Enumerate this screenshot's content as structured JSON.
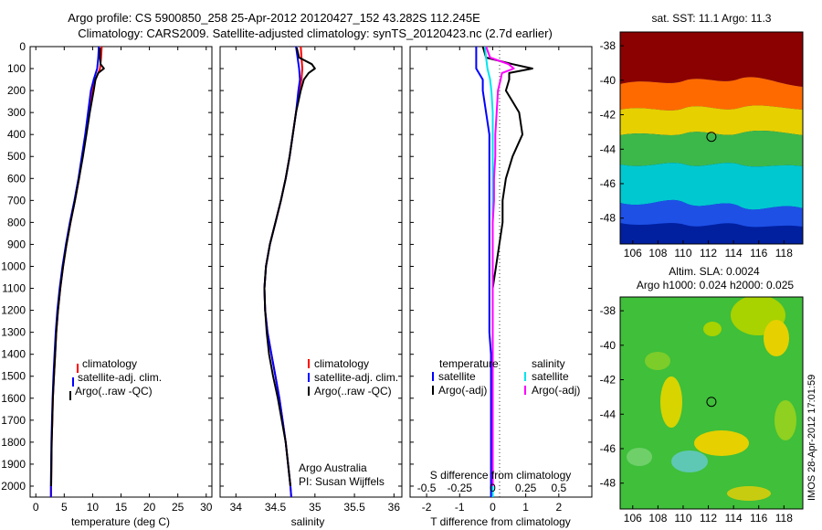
{
  "header": {
    "line1": "Argo profile: CS 5900850_258 25-Apr-2012 20120427_152 43.282S 112.245E",
    "line2": "Climatology: CARS2009. Satellite-adjusted climatology: synTS_20120423.nc (2.7d earlier)"
  },
  "colors": {
    "climatology": "#ff0000",
    "satellite": "#0000ff",
    "argo": "#000000",
    "salinity_satellite": "#00e5ee",
    "salinity_argo": "#ff00ff"
  },
  "chart_data": [
    {
      "type": "line",
      "id": "temperature",
      "xlabel": "temperature (deg C)",
      "xlim": [
        -1,
        31
      ],
      "xticks": [
        0,
        5,
        10,
        15,
        20,
        25,
        30
      ],
      "ylim": [
        2050,
        0
      ],
      "yticks": [
        0,
        100,
        200,
        300,
        400,
        500,
        600,
        700,
        800,
        900,
        1000,
        1100,
        1200,
        1300,
        1400,
        1500,
        1600,
        1700,
        1800,
        1900,
        2000
      ],
      "legend": [
        "climatology",
        "satellite-adj. clim.",
        "Argo(..raw -QC)"
      ],
      "series": [
        {
          "name": "climatology",
          "color": "red",
          "depth": [
            0,
            50,
            100,
            150,
            200,
            300,
            400,
            500,
            600,
            700,
            800,
            900,
            1000,
            1100,
            1200,
            1300,
            1400,
            1500,
            1600,
            1700,
            1800,
            1900,
            2000,
            2050
          ],
          "values": [
            11.6,
            11.5,
            11.3,
            10.5,
            10.0,
            9.4,
            8.8,
            8.2,
            7.6,
            6.9,
            6.1,
            5.4,
            4.8,
            4.3,
            3.9,
            3.6,
            3.4,
            3.2,
            3.0,
            2.9,
            2.8,
            2.75,
            2.7,
            2.7
          ]
        },
        {
          "name": "satellite-adj. clim.",
          "color": "blue",
          "depth": [
            0,
            50,
            100,
            150,
            200,
            300,
            400,
            500,
            600,
            700,
            800,
            900,
            1000,
            1100,
            1200,
            1300,
            1400,
            1500,
            1600,
            1700,
            1800,
            1900,
            2000,
            2050
          ],
          "values": [
            11.1,
            11.0,
            10.8,
            10.2,
            9.7,
            9.2,
            8.7,
            8.1,
            7.5,
            6.8,
            6.0,
            5.3,
            4.7,
            4.2,
            3.8,
            3.5,
            3.3,
            3.1,
            2.95,
            2.85,
            2.75,
            2.7,
            2.65,
            2.65
          ]
        },
        {
          "name": "Argo(..raw -QC)",
          "color": "black",
          "depth": [
            5,
            50,
            80,
            100,
            120,
            150,
            200,
            300,
            400,
            500,
            600,
            700,
            800,
            900,
            1000,
            1100,
            1200,
            1300,
            1400,
            1500,
            1600,
            1700,
            1800,
            1900,
            2000
          ],
          "values": [
            11.3,
            11.3,
            11.4,
            12.0,
            11.0,
            10.5,
            10.2,
            9.5,
            8.9,
            8.3,
            7.6,
            6.9,
            6.1,
            5.4,
            4.8,
            4.3,
            3.9,
            3.6,
            3.4,
            3.2,
            3.0,
            2.9,
            2.8,
            2.75,
            2.7
          ]
        }
      ]
    },
    {
      "type": "line",
      "id": "salinity",
      "xlabel": "salinity",
      "xlim": [
        33.8,
        36.1
      ],
      "xticks": [
        34,
        34.5,
        35,
        35.5,
        36
      ],
      "ylim": [
        2050,
        0
      ],
      "legend": [
        "climatology",
        "satellite-adj. clim.",
        "Argo(..raw -QC)"
      ],
      "annotation": [
        "Argo Australia",
        "PI: Susan Wijffels"
      ],
      "series": [
        {
          "name": "climatology",
          "color": "red",
          "depth": [
            0,
            50,
            100,
            150,
            200,
            300,
            400,
            500,
            600,
            700,
            800,
            900,
            1000,
            1100,
            1200,
            1300,
            1400,
            1500,
            1600,
            1700,
            1800,
            1900,
            2000,
            2050
          ],
          "values": [
            34.82,
            34.83,
            34.84,
            34.83,
            34.8,
            34.76,
            34.72,
            34.68,
            34.63,
            34.57,
            34.5,
            34.43,
            34.38,
            34.36,
            34.37,
            34.4,
            34.45,
            34.5,
            34.55,
            34.59,
            34.63,
            34.66,
            34.69,
            34.7
          ]
        },
        {
          "name": "satellite-adj. clim.",
          "color": "blue",
          "depth": [
            0,
            50,
            100,
            150,
            200,
            300,
            400,
            500,
            600,
            700,
            800,
            900,
            1000,
            1100,
            1200,
            1300,
            1400,
            1500,
            1600,
            1700,
            1800,
            1900,
            2000,
            2050
          ],
          "values": [
            34.76,
            34.78,
            34.8,
            34.81,
            34.79,
            34.76,
            34.72,
            34.68,
            34.63,
            34.57,
            34.5,
            34.43,
            34.38,
            34.36,
            34.37,
            34.4,
            34.45,
            34.5,
            34.55,
            34.59,
            34.63,
            34.66,
            34.69,
            34.7
          ]
        },
        {
          "name": "Argo(..raw -QC)",
          "color": "black",
          "depth": [
            5,
            50,
            80,
            100,
            120,
            150,
            200,
            300,
            400,
            500,
            600,
            700,
            800,
            900,
            1000,
            1100,
            1200,
            1300,
            1400,
            1500,
            1600,
            1700,
            1800,
            1900,
            2000
          ],
          "values": [
            34.77,
            34.8,
            34.96,
            35.0,
            34.92,
            34.86,
            34.82,
            34.76,
            34.72,
            34.68,
            34.63,
            34.57,
            34.5,
            34.43,
            34.38,
            34.36,
            34.37,
            34.39,
            34.42,
            34.47,
            34.53,
            34.58,
            34.63,
            34.66,
            34.69
          ]
        }
      ]
    },
    {
      "type": "line",
      "id": "difference",
      "xlabel": "T difference from climatology",
      "xlabel2": "S difference from climatology",
      "xlim": [
        -2.5,
        3.0
      ],
      "xticks": [
        -2,
        -1,
        0,
        1,
        2
      ],
      "xticks2": [
        "-0.5",
        "-0.25",
        "0",
        "0.25",
        "0.5"
      ],
      "ylim": [
        2050,
        0
      ],
      "legend_headers": [
        "temperature",
        "salinity"
      ],
      "legend": [
        "satellite",
        "Argo(-adj)",
        "satellite",
        "Argo(-adj)"
      ],
      "series": [
        {
          "name": "temperature satellite",
          "color": "blue",
          "depth": [
            0,
            50,
            100,
            150,
            200,
            300,
            400,
            500,
            600,
            700,
            800,
            900,
            1000,
            1100,
            1200,
            1300,
            1400,
            1500,
            1600,
            1700,
            1800,
            1900,
            2000,
            2050
          ],
          "values": [
            -0.5,
            -0.5,
            -0.5,
            -0.3,
            -0.3,
            -0.2,
            -0.1,
            -0.1,
            -0.1,
            -0.1,
            -0.1,
            -0.1,
            -0.1,
            -0.1,
            -0.1,
            -0.1,
            -0.05,
            -0.05,
            -0.05,
            -0.05,
            -0.05,
            -0.05,
            -0.05,
            -0.05
          ]
        },
        {
          "name": "temperature Argo(-adj)",
          "color": "black",
          "depth": [
            0,
            50,
            80,
            100,
            120,
            150,
            200,
            250,
            300,
            400,
            500,
            600,
            700,
            800,
            900,
            1000,
            1100,
            1200,
            1300,
            1400,
            1500,
            1600,
            1700,
            1800,
            1900,
            2000
          ],
          "values": [
            -0.3,
            -0.2,
            0.6,
            1.2,
            0.5,
            0.5,
            0.4,
            0.6,
            0.8,
            0.9,
            0.6,
            0.4,
            0.3,
            0.3,
            0.2,
            0.1,
            0.0,
            0.0,
            0.0,
            0.0,
            0.0,
            0.0,
            0.0,
            0.0,
            0.0,
            0.0
          ]
        },
        {
          "name": "salinity satellite",
          "color": "cyan",
          "depth": [
            0,
            50,
            100,
            150,
            200,
            300,
            400,
            500,
            600,
            700,
            800,
            900,
            1000,
            1200,
            1400,
            1600,
            1800,
            2000,
            2050
          ],
          "values": [
            -0.06,
            -0.05,
            -0.04,
            -0.02,
            -0.01,
            0.0,
            0.0,
            0.0,
            0.0,
            0.0,
            0.0,
            0.0,
            0.0,
            0.0,
            0.0,
            0.0,
            0.0,
            0.0,
            0.0
          ]
        },
        {
          "name": "salinity Argo(-adj)",
          "color": "magenta",
          "depth": [
            0,
            50,
            80,
            100,
            120,
            150,
            200,
            300,
            400,
            500,
            600,
            700,
            800,
            900,
            1000,
            1100,
            1200,
            1300,
            1400,
            1500,
            1600,
            1700,
            1800,
            1900,
            2000
          ],
          "values": [
            -0.05,
            -0.02,
            0.12,
            0.16,
            0.07,
            0.06,
            0.04,
            0.03,
            0.02,
            0.02,
            0.01,
            0.01,
            0.0,
            0.0,
            0.0,
            0.0,
            0.0,
            0.0,
            0.0,
            0.0,
            0.0,
            0.0,
            0.0,
            0.0,
            0.0
          ]
        }
      ]
    },
    {
      "type": "heatmap",
      "id": "sst-map",
      "title": "sat. SST: 11.1  Argo: 11.3",
      "xlim": [
        105,
        119.5
      ],
      "ylim": [
        -49.5,
        -37.2
      ],
      "xticks": [
        106,
        108,
        110,
        112,
        114,
        116,
        118
      ],
      "yticks": [
        -38,
        -40,
        -42,
        -44,
        -46,
        -48
      ],
      "marker": {
        "lon": 112.245,
        "lat": -43.282
      }
    },
    {
      "type": "heatmap",
      "id": "sla-map",
      "title": "Altim. SLA: 0.0024",
      "subtitle": "Argo h1000: 0.024 h2000: 0.025",
      "xlim": [
        105,
        119.5
      ],
      "ylim": [
        -49.5,
        -37.2
      ],
      "xticks": [
        106,
        108,
        110,
        112,
        114,
        116,
        118
      ],
      "yticks": [
        -38,
        -40,
        -42,
        -44,
        -46,
        -48
      ],
      "marker": {
        "lon": 112.245,
        "lat": -43.282
      }
    }
  ],
  "footer": {
    "stamp": "IMOS 28-Apr-2012 17:01:59"
  }
}
